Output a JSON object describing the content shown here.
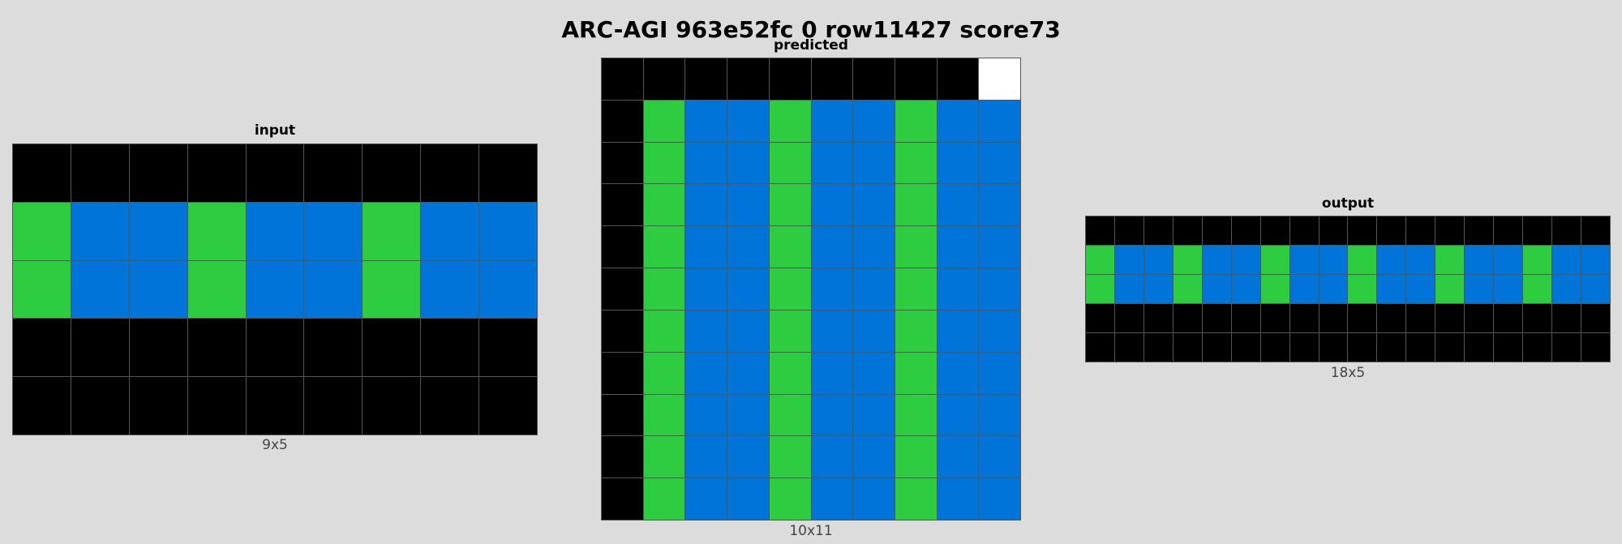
{
  "title": "ARC-AGI 963e52fc 0 row11427 score73",
  "palette": {
    "0": "#000000",
    "1": "#0074d9",
    "3": "#2ecc40",
    "5": "#ffffff"
  },
  "panels": {
    "input": {
      "label": "input",
      "dims": "9x5",
      "grid": [
        [
          0,
          0,
          0,
          0,
          0,
          0,
          0,
          0,
          0
        ],
        [
          3,
          1,
          1,
          3,
          1,
          1,
          3,
          1,
          1
        ],
        [
          3,
          1,
          1,
          3,
          1,
          1,
          3,
          1,
          1
        ],
        [
          0,
          0,
          0,
          0,
          0,
          0,
          0,
          0,
          0
        ],
        [
          0,
          0,
          0,
          0,
          0,
          0,
          0,
          0,
          0
        ]
      ]
    },
    "predicted": {
      "label": "predicted",
      "dims": "10x11",
      "grid": [
        [
          0,
          0,
          0,
          0,
          0,
          0,
          0,
          0,
          0,
          5
        ],
        [
          0,
          3,
          1,
          1,
          3,
          1,
          1,
          3,
          1,
          1
        ],
        [
          0,
          3,
          1,
          1,
          3,
          1,
          1,
          3,
          1,
          1
        ],
        [
          0,
          3,
          1,
          1,
          3,
          1,
          1,
          3,
          1,
          1
        ],
        [
          0,
          3,
          1,
          1,
          3,
          1,
          1,
          3,
          1,
          1
        ],
        [
          0,
          3,
          1,
          1,
          3,
          1,
          1,
          3,
          1,
          1
        ],
        [
          0,
          3,
          1,
          1,
          3,
          1,
          1,
          3,
          1,
          1
        ],
        [
          0,
          3,
          1,
          1,
          3,
          1,
          1,
          3,
          1,
          1
        ],
        [
          0,
          3,
          1,
          1,
          3,
          1,
          1,
          3,
          1,
          1
        ],
        [
          0,
          3,
          1,
          1,
          3,
          1,
          1,
          3,
          1,
          1
        ],
        [
          0,
          3,
          1,
          1,
          3,
          1,
          1,
          3,
          1,
          1
        ]
      ]
    },
    "output": {
      "label": "output",
      "dims": "18x5",
      "grid": [
        [
          0,
          0,
          0,
          0,
          0,
          0,
          0,
          0,
          0,
          0,
          0,
          0,
          0,
          0,
          0,
          0,
          0,
          0
        ],
        [
          3,
          1,
          1,
          3,
          1,
          1,
          3,
          1,
          1,
          3,
          1,
          1,
          3,
          1,
          1,
          3,
          1,
          1
        ],
        [
          3,
          1,
          1,
          3,
          1,
          1,
          3,
          1,
          1,
          3,
          1,
          1,
          3,
          1,
          1,
          3,
          1,
          1
        ],
        [
          0,
          0,
          0,
          0,
          0,
          0,
          0,
          0,
          0,
          0,
          0,
          0,
          0,
          0,
          0,
          0,
          0,
          0
        ],
        [
          0,
          0,
          0,
          0,
          0,
          0,
          0,
          0,
          0,
          0,
          0,
          0,
          0,
          0,
          0,
          0,
          0,
          0
        ]
      ]
    }
  }
}
